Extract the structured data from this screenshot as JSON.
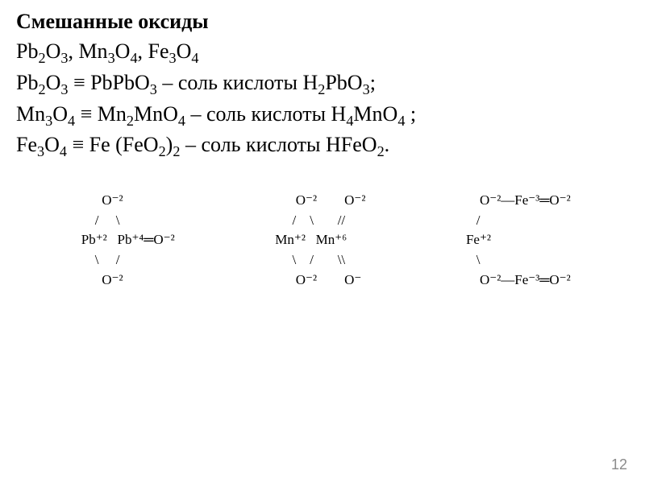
{
  "title": "Смешанные оксиды",
  "lines": {
    "l1_a": "Pb",
    "l1_b": "O",
    "l1_c": ", Mn",
    "l1_d": "O",
    "l1_e": ", Fe",
    "l1_f": "O",
    "l2_a": "Pb",
    "l2_b": "O",
    "l2_c": " ≡ PbPbO",
    "l2_d": " – соль кислоты H",
    "l2_e": "PbO",
    "l2_f": ";",
    "l3_a": "Mn",
    "l3_b": "O",
    "l3_c": " ≡ Mn",
    "l3_d": "MnO",
    "l3_e": " – соль кислоты H",
    "l3_f": "MnO",
    "l3_g": " ;",
    "l4_a": " Fe",
    "l4_b": "O",
    "l4_c": " ≡ Fe (FeO",
    "l4_d": ")",
    "l4_e": " – соль кислоты HFeO",
    "l4_f": "."
  },
  "diagrams": {
    "d1": {
      "r1": "        O⁻²",
      "r2": "      /     \\",
      "r3": "  Pb⁺²   Pb⁺⁴═O⁻²",
      "r4": "      \\     /",
      "r5": "        O⁻²"
    },
    "d2": {
      "r1": "      O⁻²        O⁻²",
      "r2": "     /    \\       //",
      "r3": "Mn⁺²   Mn⁺⁶",
      "r4": "     \\    /       \\\\",
      "r5": "      O⁻²        O⁻"
    },
    "d3": {
      "r1": "    O⁻²―Fe⁻³═O⁻²",
      "r2": "   /",
      "r3": "Fe⁺²",
      "r4": "   \\",
      "r5": "    O⁻²―Fe⁻³═O⁻²"
    }
  },
  "page_number": "12"
}
